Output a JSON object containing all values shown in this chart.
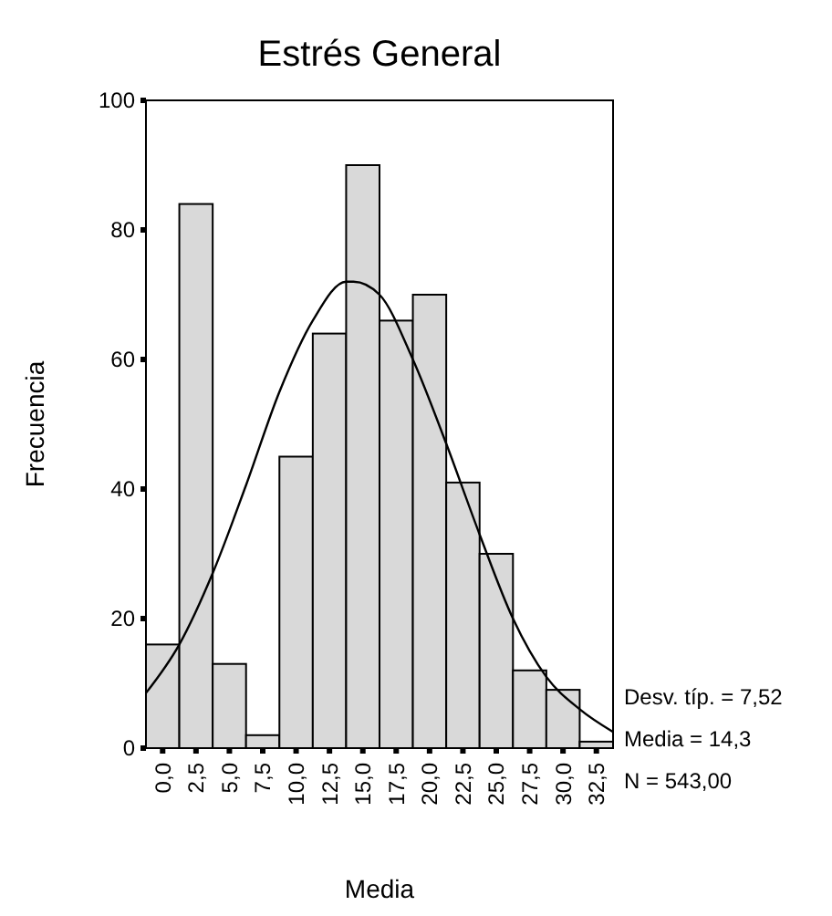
{
  "chart_data": {
    "type": "histogram",
    "title": "Estrés General",
    "xlabel": "Media",
    "ylabel": "Frecuencia",
    "annotations": [
      "Desv. típ. = 7,52",
      "Media = 14,3",
      "N = 543,00"
    ],
    "color": "#d9d9d9",
    "bins": [
      -1.25,
      1.25,
      3.75,
      6.25,
      8.75,
      11.25,
      13.75,
      16.25,
      18.75,
      21.25,
      23.75,
      26.25,
      28.75,
      31.25,
      33.75
    ],
    "values": [
      16,
      84,
      13,
      2,
      45,
      64,
      90,
      66,
      70,
      41,
      30,
      12,
      9,
      1
    ],
    "series": [
      {
        "type": "line",
        "color": "#000000",
        "x": [
          -1.25,
          1.25,
          3.75,
          6.25,
          8.75,
          11.25,
          13.75,
          14.3,
          16.25,
          18.75,
          21.25,
          23.75,
          26.25,
          28.75,
          31.25,
          33.75
        ],
        "values": [
          8.5,
          16,
          27,
          40.6,
          55,
          66,
          72,
          72,
          70,
          60,
          47,
          33,
          20,
          11,
          6,
          2.5
        ]
      }
    ],
    "xlim": [
      -1.25,
      33.75
    ],
    "xticks": [
      {
        "value": 0,
        "label": "0,0"
      },
      {
        "value": 2.5,
        "label": "2,5"
      },
      {
        "value": 5,
        "label": "5,0"
      },
      {
        "value": 7.5,
        "label": "7,5"
      },
      {
        "value": 10,
        "label": "10,0"
      },
      {
        "value": 12.5,
        "label": "12,5"
      },
      {
        "value": 15,
        "label": "15,0"
      },
      {
        "value": 17.5,
        "label": "17,5"
      },
      {
        "value": 20,
        "label": "20,0"
      },
      {
        "value": 22.5,
        "label": "22,5"
      },
      {
        "value": 25,
        "label": "25,0"
      },
      {
        "value": 27.5,
        "label": "27,5"
      },
      {
        "value": 30,
        "label": "30,0"
      },
      {
        "value": 32.5,
        "label": "32,5"
      }
    ],
    "ylim": [
      0,
      100
    ],
    "yticks": [
      0,
      20,
      40,
      60,
      80,
      100
    ],
    "grid": false
  }
}
